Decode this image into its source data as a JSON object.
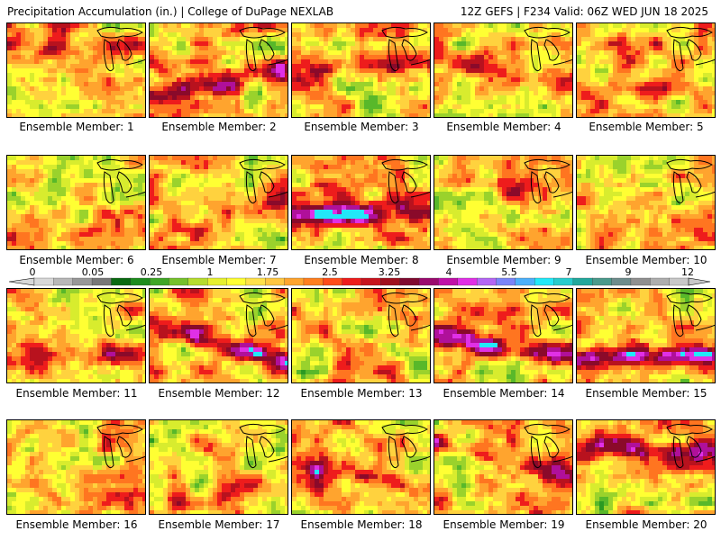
{
  "header": {
    "title": "Precipitation Accumulation (in.) | College of DuPage NEXLAB",
    "valid": "12Z GEFS | F234 Valid: 06Z WED JUN 18 2025"
  },
  "colorbar": {
    "tick_labels": [
      "0",
      "0.05",
      "0.25",
      "1",
      "1.75",
      "2.5",
      "3.25",
      "4",
      "5.5",
      "7",
      "9",
      "12"
    ],
    "colors": [
      "#d8d8d8",
      "#b8b8b8",
      "#989898",
      "#787878",
      "#0a6a12",
      "#1e8c1e",
      "#3fa626",
      "#76c12b",
      "#b6dc2e",
      "#e6f02e",
      "#ffff33",
      "#ffe14a",
      "#ffc640",
      "#ffa42e",
      "#ff7f1f",
      "#ff4c1a",
      "#ee1c1c",
      "#c8141e",
      "#a0101e",
      "#800a30",
      "#9a0a6e",
      "#c010a8",
      "#e030e6",
      "#b466f4",
      "#7a84f8",
      "#4cb0fa",
      "#22e8f8",
      "#26cccc",
      "#22a89c",
      "#4a9a8c",
      "#6e8c8c",
      "#909090",
      "#aeaeae",
      "#c8c8c8"
    ]
  },
  "panels": [
    {
      "caption": "Ensemble Member: 1"
    },
    {
      "caption": "Ensemble Member: 2"
    },
    {
      "caption": "Ensemble Member: 3"
    },
    {
      "caption": "Ensemble Member: 4"
    },
    {
      "caption": "Ensemble Member: 5"
    },
    {
      "caption": "Ensemble Member: 6"
    },
    {
      "caption": "Ensemble Member: 7"
    },
    {
      "caption": "Ensemble Member: 8"
    },
    {
      "caption": "Ensemble Member: 9"
    },
    {
      "caption": "Ensemble Member: 10"
    },
    {
      "caption": "Ensemble Member: 11"
    },
    {
      "caption": "Ensemble Member: 12"
    },
    {
      "caption": "Ensemble Member: 13"
    },
    {
      "caption": "Ensemble Member: 14"
    },
    {
      "caption": "Ensemble Member: 15"
    },
    {
      "caption": "Ensemble Member: 16"
    },
    {
      "caption": "Ensemble Member: 17"
    },
    {
      "caption": "Ensemble Member: 18"
    },
    {
      "caption": "Ensemble Member: 19"
    },
    {
      "caption": "Ensemble Member: 20"
    }
  ]
}
